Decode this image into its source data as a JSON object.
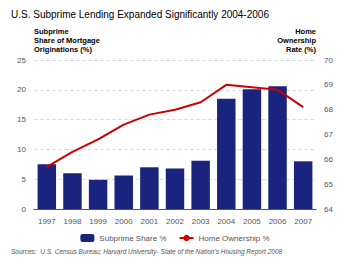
{
  "chart_data": {
    "type": "bar",
    "title": "U.S. Subprime Lending Expanded Significantly 2004-2006",
    "categories": [
      "1997",
      "1998",
      "1999",
      "2000",
      "2001",
      "2002",
      "2003",
      "2004",
      "2005",
      "2006",
      "2007"
    ],
    "series": [
      {
        "name": "Subprime Share %",
        "type": "bar",
        "color": "#1a237e",
        "values": [
          7.5,
          6.0,
          4.9,
          5.6,
          7.0,
          6.8,
          8.1,
          18.5,
          20.1,
          20.6,
          8.0
        ]
      },
      {
        "name": "Home Ownership %",
        "type": "line",
        "axis": "y2",
        "color": "#cc0000",
        "values": [
          65.7,
          66.3,
          66.8,
          67.4,
          67.8,
          68.0,
          68.3,
          69.0,
          68.9,
          68.8,
          68.1
        ]
      }
    ],
    "ylabel": "Subprime\nShare of Mortgage\nOriginations (%)",
    "y2label": "Home\nOwnership\nRate (%)",
    "ylim": [
      0,
      25
    ],
    "yticks": [
      0,
      5,
      10,
      15,
      20,
      25
    ],
    "y2lim": [
      64,
      70
    ],
    "y2ticks": [
      64,
      65,
      66,
      67,
      68,
      69,
      70
    ],
    "source": "Sources:  U.S. Census Bureau; Harvard University- State of the Nation's Housing Report 2008",
    "grid": true,
    "legend": "bottom"
  }
}
